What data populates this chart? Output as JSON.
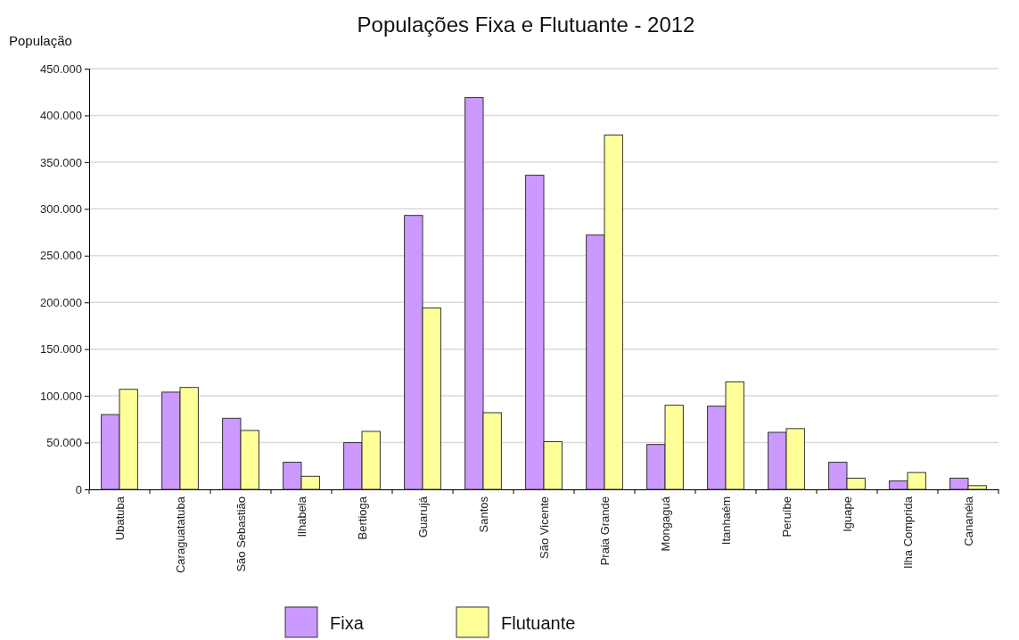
{
  "chart_data": {
    "type": "bar",
    "title": "Populações Fixa e Flutuante - 2012",
    "ylabel": "População",
    "categories": [
      "Ubatuba",
      "Caraguatatuba",
      "São Sebastião",
      "Ilhabela",
      "Bertioga",
      "Guarujá",
      "Santos",
      "São Vicente",
      "Praia Grande",
      "Mongaguá",
      "Itanhaém",
      "Peruíbe",
      "Iguape",
      "Ilha Comprida",
      "Cananéia"
    ],
    "series": [
      {
        "name": "Fixa",
        "color": "#cc99ff",
        "values": [
          80000,
          104000,
          76000,
          29000,
          50000,
          293000,
          419000,
          336000,
          272000,
          48000,
          89000,
          61000,
          29000,
          9000,
          12000
        ]
      },
      {
        "name": "Flutuante",
        "color": "#ffff99",
        "values": [
          107000,
          109000,
          63000,
          14000,
          62000,
          194000,
          82000,
          51000,
          379000,
          90000,
          115000,
          65000,
          12000,
          18000,
          4000
        ]
      }
    ],
    "ylim": [
      0,
      450000
    ],
    "yticks": [
      {
        "value": 0,
        "label": "0"
      },
      {
        "value": 50000,
        "label": "50.000"
      },
      {
        "value": 100000,
        "label": "100.000"
      },
      {
        "value": 150000,
        "label": "150.000"
      },
      {
        "value": 200000,
        "label": "200.000"
      },
      {
        "value": 250000,
        "label": "250.000"
      },
      {
        "value": 300000,
        "label": "300.000"
      },
      {
        "value": 350000,
        "label": "350.000"
      },
      {
        "value": 400000,
        "label": "400.000"
      },
      {
        "value": 450000,
        "label": "450.000"
      }
    ],
    "grid": "y",
    "legend": "bottom"
  }
}
